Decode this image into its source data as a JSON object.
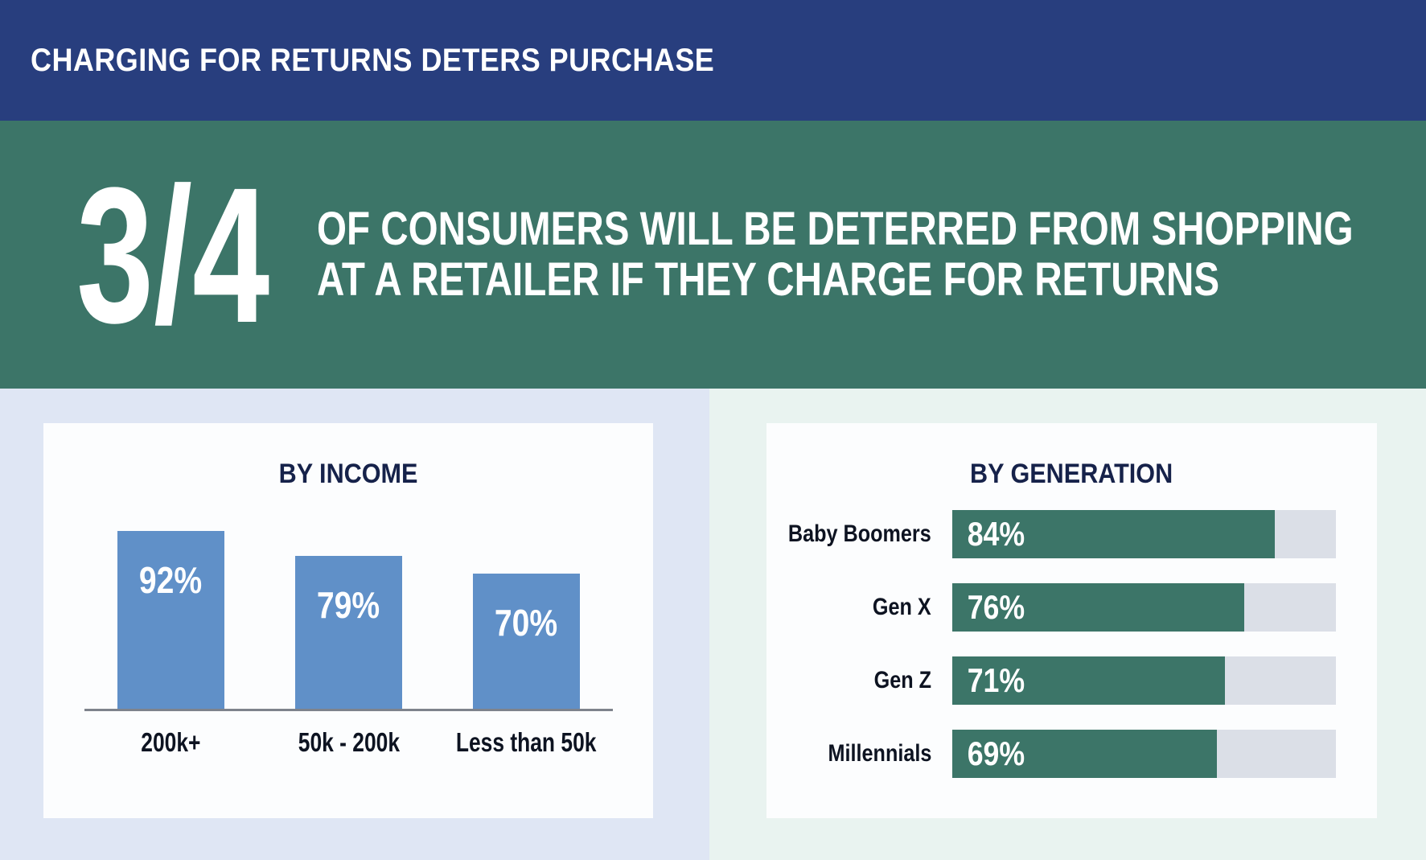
{
  "header": {
    "title": "CHARGING FOR RETURNS DETERS PURCHASE"
  },
  "hero": {
    "fraction": "3/4",
    "line1": "OF CONSUMERS WILL BE DETERRED FROM SHOPPING",
    "line2": "AT A RETAILER IF THEY CHARGE FOR RETURNS"
  },
  "colors": {
    "header_bg": "#283e7e",
    "hero_bg": "#3c7568",
    "income_panel_bg": "#dfe6f4",
    "generation_panel_bg": "#e9f3f0",
    "card_bg": "#fcfdfe",
    "income_bar": "#6090c8",
    "generation_bar": "#3c7568",
    "generation_track": "#dbdfe7",
    "title_text": "#16224a",
    "label_text": "#0d1321",
    "light_text": "#ffffff"
  },
  "chart_data": [
    {
      "type": "bar",
      "orientation": "vertical",
      "title": "BY INCOME",
      "categories": [
        "200k+",
        "50k - 200k",
        "Less than 50k"
      ],
      "values": [
        92,
        79,
        70
      ],
      "value_labels": [
        "92%",
        "79%",
        "70%"
      ],
      "ylim": [
        0,
        100
      ],
      "grid": false,
      "bar_color": "#6090c8"
    },
    {
      "type": "bar",
      "orientation": "horizontal",
      "title": "BY GENERATION",
      "categories": [
        "Baby Boomers",
        "Gen X",
        "Gen Z",
        "Millennials"
      ],
      "values": [
        84,
        76,
        71,
        69
      ],
      "value_labels": [
        "84%",
        "76%",
        "71%",
        "69%"
      ],
      "xlim": [
        0,
        100
      ],
      "grid": false,
      "bar_color": "#3c7568",
      "track_color": "#dbdfe7"
    }
  ]
}
